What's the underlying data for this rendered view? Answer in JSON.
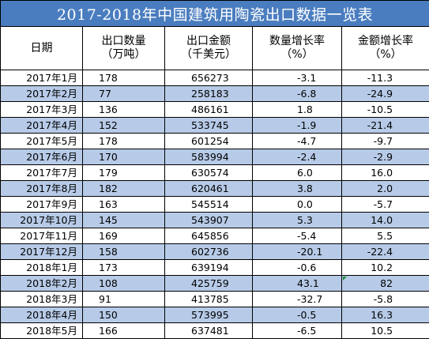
{
  "title": "2017-2018年中国建筑用陶瓷出口数据一览表",
  "headers": {
    "date": [
      "日期"
    ],
    "volume": [
      "出口数量",
      "（万吨）"
    ],
    "amount": [
      "出口金额",
      "（千美元）"
    ],
    "volume_growth": [
      "数量增长率",
      "（%）"
    ],
    "amount_growth": [
      "金额增长率",
      "（%）"
    ]
  },
  "rows": [
    {
      "date": "2017年1月",
      "volume": "178",
      "amount": "656273",
      "volume_growth": "-3.1",
      "amount_growth": "-11.3"
    },
    {
      "date": "2017年2月",
      "volume": "77",
      "amount": "258183",
      "volume_growth": "-6.8",
      "amount_growth": "-24.9"
    },
    {
      "date": "2017年3月",
      "volume": "136",
      "amount": "486161",
      "volume_growth": "1.8",
      "amount_growth": "-10.5"
    },
    {
      "date": "2017年4月",
      "volume": "152",
      "amount": "533745",
      "volume_growth": "-1.9",
      "amount_growth": "-21.4"
    },
    {
      "date": "2017年5月",
      "volume": "178",
      "amount": "601254",
      "volume_growth": "-4.7",
      "amount_growth": "-9.7"
    },
    {
      "date": "2017年6月",
      "volume": "170",
      "amount": "583994",
      "volume_growth": "-2.4",
      "amount_growth": "-2.9"
    },
    {
      "date": "2017年7月",
      "volume": "179",
      "amount": "630574",
      "volume_growth": "6.0",
      "amount_growth": "16.0"
    },
    {
      "date": "2017年8月",
      "volume": "182",
      "amount": "620461",
      "volume_growth": "3.8",
      "amount_growth": "2.0"
    },
    {
      "date": "2017年9月",
      "volume": "163",
      "amount": "545514",
      "volume_growth": "0.0",
      "amount_growth": "-5.7"
    },
    {
      "date": "2017年10月",
      "volume": "145",
      "amount": "543907",
      "volume_growth": "5.3",
      "amount_growth": "14.0"
    },
    {
      "date": "2017年11月",
      "volume": "169",
      "amount": "645856",
      "volume_growth": "-5.4",
      "amount_growth": "5.5"
    },
    {
      "date": "2017年12月",
      "volume": "158",
      "amount": "602736",
      "volume_growth": "-20.1",
      "amount_growth": "-22.4"
    },
    {
      "date": "2018年1月",
      "volume": "173",
      "amount": "639194",
      "volume_growth": "-0.6",
      "amount_growth": "10.2"
    },
    {
      "date": "2018年2月",
      "volume": "108",
      "amount": "425759",
      "volume_growth": "43.1",
      "amount_growth": "82"
    },
    {
      "date": "2018年3月",
      "volume": "91",
      "amount": "413785",
      "volume_growth": "-32.7",
      "amount_growth": "-5.8"
    },
    {
      "date": "2018年4月",
      "volume": "150",
      "amount": "573995",
      "volume_growth": "-0.5",
      "amount_growth": "16.3"
    },
    {
      "date": "2018年5月",
      "volume": "166",
      "amount": "637481",
      "volume_growth": "-6.5",
      "amount_growth": "10.5"
    }
  ],
  "colors": {
    "title_background": "#4a7dbf",
    "title_text": "#ffffff",
    "band_row": "#b7cbe8",
    "grid_line": "#000000",
    "error_marker": "#1f8f3a"
  },
  "error_marker_icon": "green-triangle-icon"
}
